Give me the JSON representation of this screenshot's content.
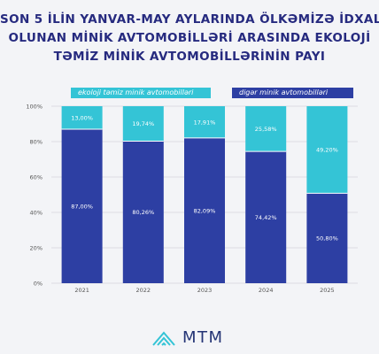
{
  "title_lines": [
    "SON 5 İLİN YANVAR-MAY AYLARINDA ÖLKƏMİZƏ İDXAL",
    "OLUNAN MİNİK AVTOMOBİLLƏRİ ARASINDA EKOLOJİ",
    "TƏMİZ MİNİK AVTOMOBİLLƏRİNİN PAYI"
  ],
  "colors": {
    "eco": "#34c4d6",
    "other": "#2d3fa3",
    "title": "#262a7f",
    "axis_text": "#555555",
    "grid": "#d4d6dc"
  },
  "logo": {
    "text": "MTM",
    "icon": "mtm-emblem-icon"
  },
  "chart_data": {
    "type": "bar",
    "stacked": true,
    "categories": [
      "2021",
      "2022",
      "2023",
      "2024",
      "2025"
    ],
    "series": [
      {
        "name": "digər minik avtomobilləri",
        "values": [
          87.0,
          80.26,
          82.09,
          74.42,
          50.8
        ],
        "labels": [
          "87,00%",
          "80,26%",
          "82,09%",
          "74,42%",
          "50,80%"
        ]
      },
      {
        "name": "ekoloji təmiz minik avtomobilləri",
        "values": [
          13.0,
          19.74,
          17.91,
          25.58,
          49.2
        ],
        "labels": [
          "13,00%",
          "19,74%",
          "17,91%",
          "25,58%",
          "49,20%"
        ]
      }
    ],
    "yticks": [
      "0%",
      "20%",
      "40%",
      "60%",
      "80%",
      "100%"
    ],
    "ylim": [
      0,
      100
    ],
    "grid": true,
    "legend": "top",
    "xlabel": "",
    "ylabel": ""
  }
}
